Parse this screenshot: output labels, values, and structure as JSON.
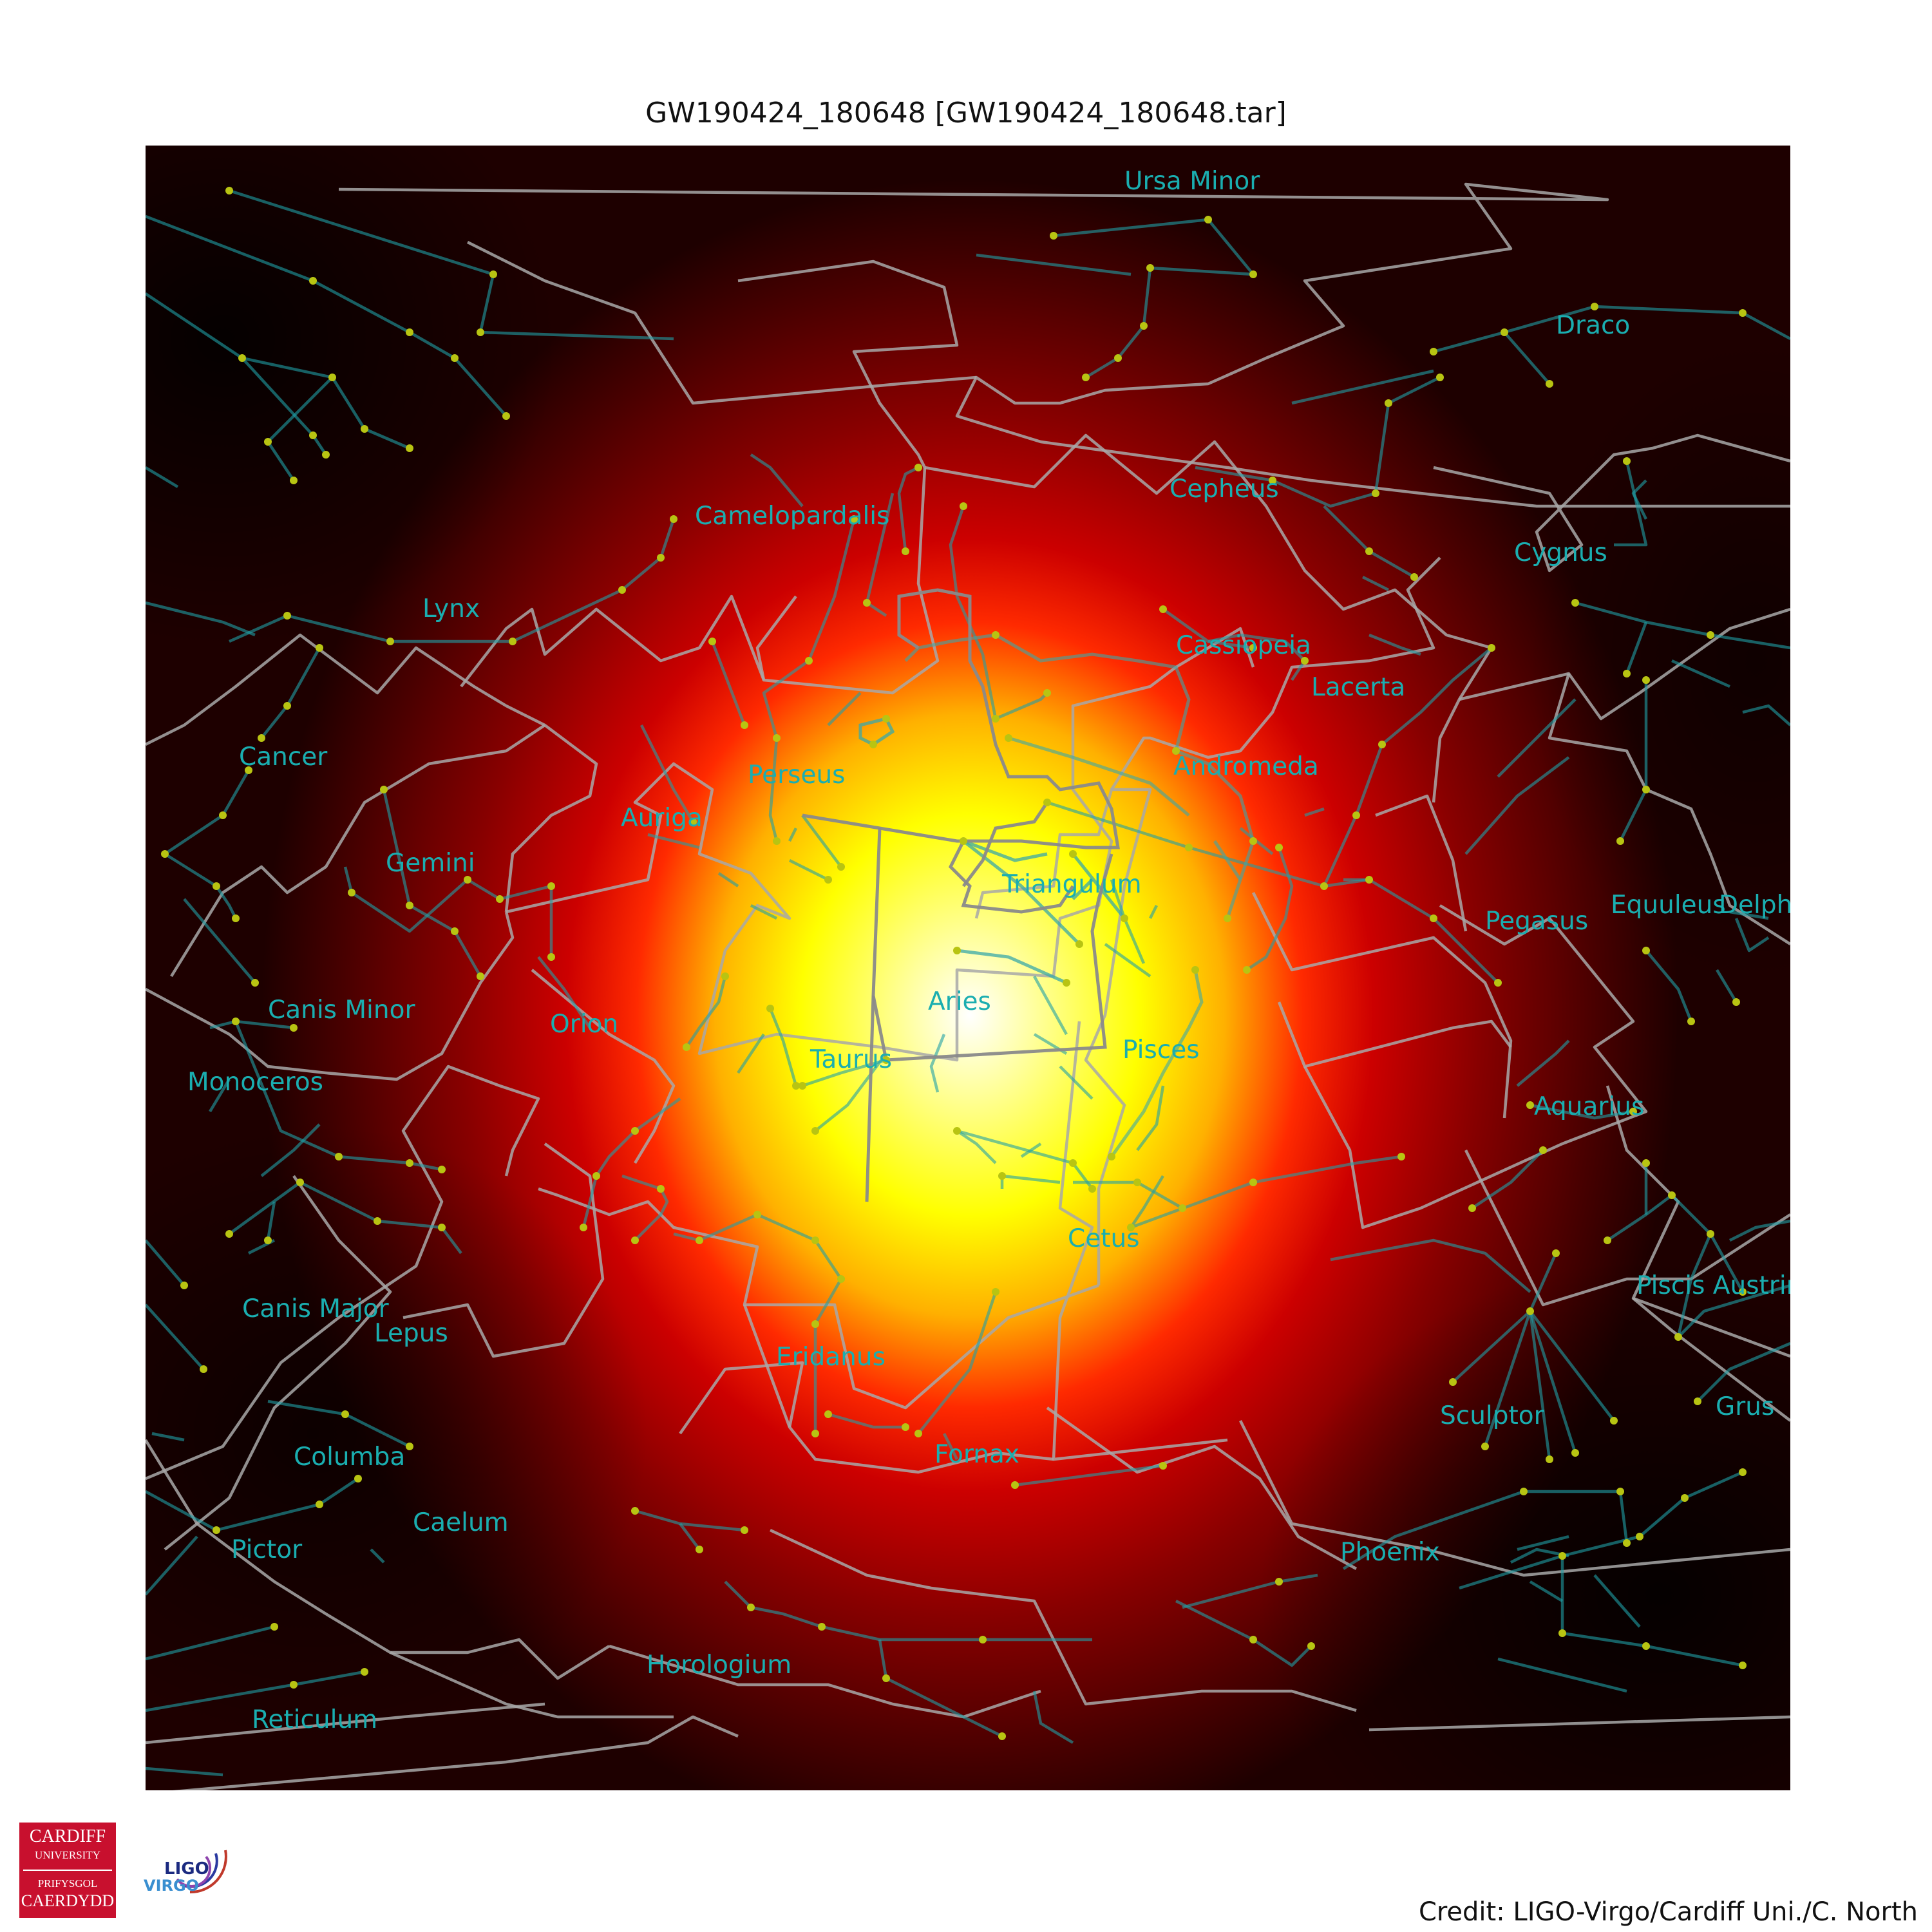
{
  "title": "GW190424_180648 [GW190424_180648.tar]",
  "credit": "Credit: LIGO-Virgo/Cardiff Uni./C. North",
  "logos": {
    "cardiff": {
      "line1": "CARDIFF",
      "line2": "UNIVERSITY",
      "line3": "PRIFYSGOL",
      "line4": "CAERDYDD"
    },
    "ligo": {
      "top": "LIGO",
      "bottom": "VIRGO"
    }
  },
  "skymap": {
    "colormap": "hot",
    "peak_constellation": "Aries",
    "constellations": [
      "Ursa Minor",
      "Draco",
      "Cepheus",
      "Camelopardalis",
      "Cygnus",
      "Lynx",
      "Cassiopeia",
      "Lacerta",
      "Cancer",
      "Perseus",
      "Andromeda",
      "Auriga",
      "Gemini",
      "Triangulum",
      "Pegasus",
      "Equuleus",
      "Delphinus",
      "Aries",
      "Canis Minor",
      "Orion",
      "Pisces",
      "Taurus",
      "Monoceros",
      "Aquarius",
      "Cetus",
      "Piscis Austrinus",
      "Canis Major",
      "Lepus",
      "Eridanus",
      "Grus",
      "Sculptor",
      "Fornax",
      "Columba",
      "Caelum",
      "Pictor",
      "Phoenix",
      "Horologium",
      "Reticulum"
    ]
  },
  "colors": {
    "label": "#1aaeb0",
    "constellation_line": "#1fa0a6",
    "boundary_line": "#a8a8a8",
    "star": "#b8c412",
    "cardiff_red": "#c8102e"
  }
}
